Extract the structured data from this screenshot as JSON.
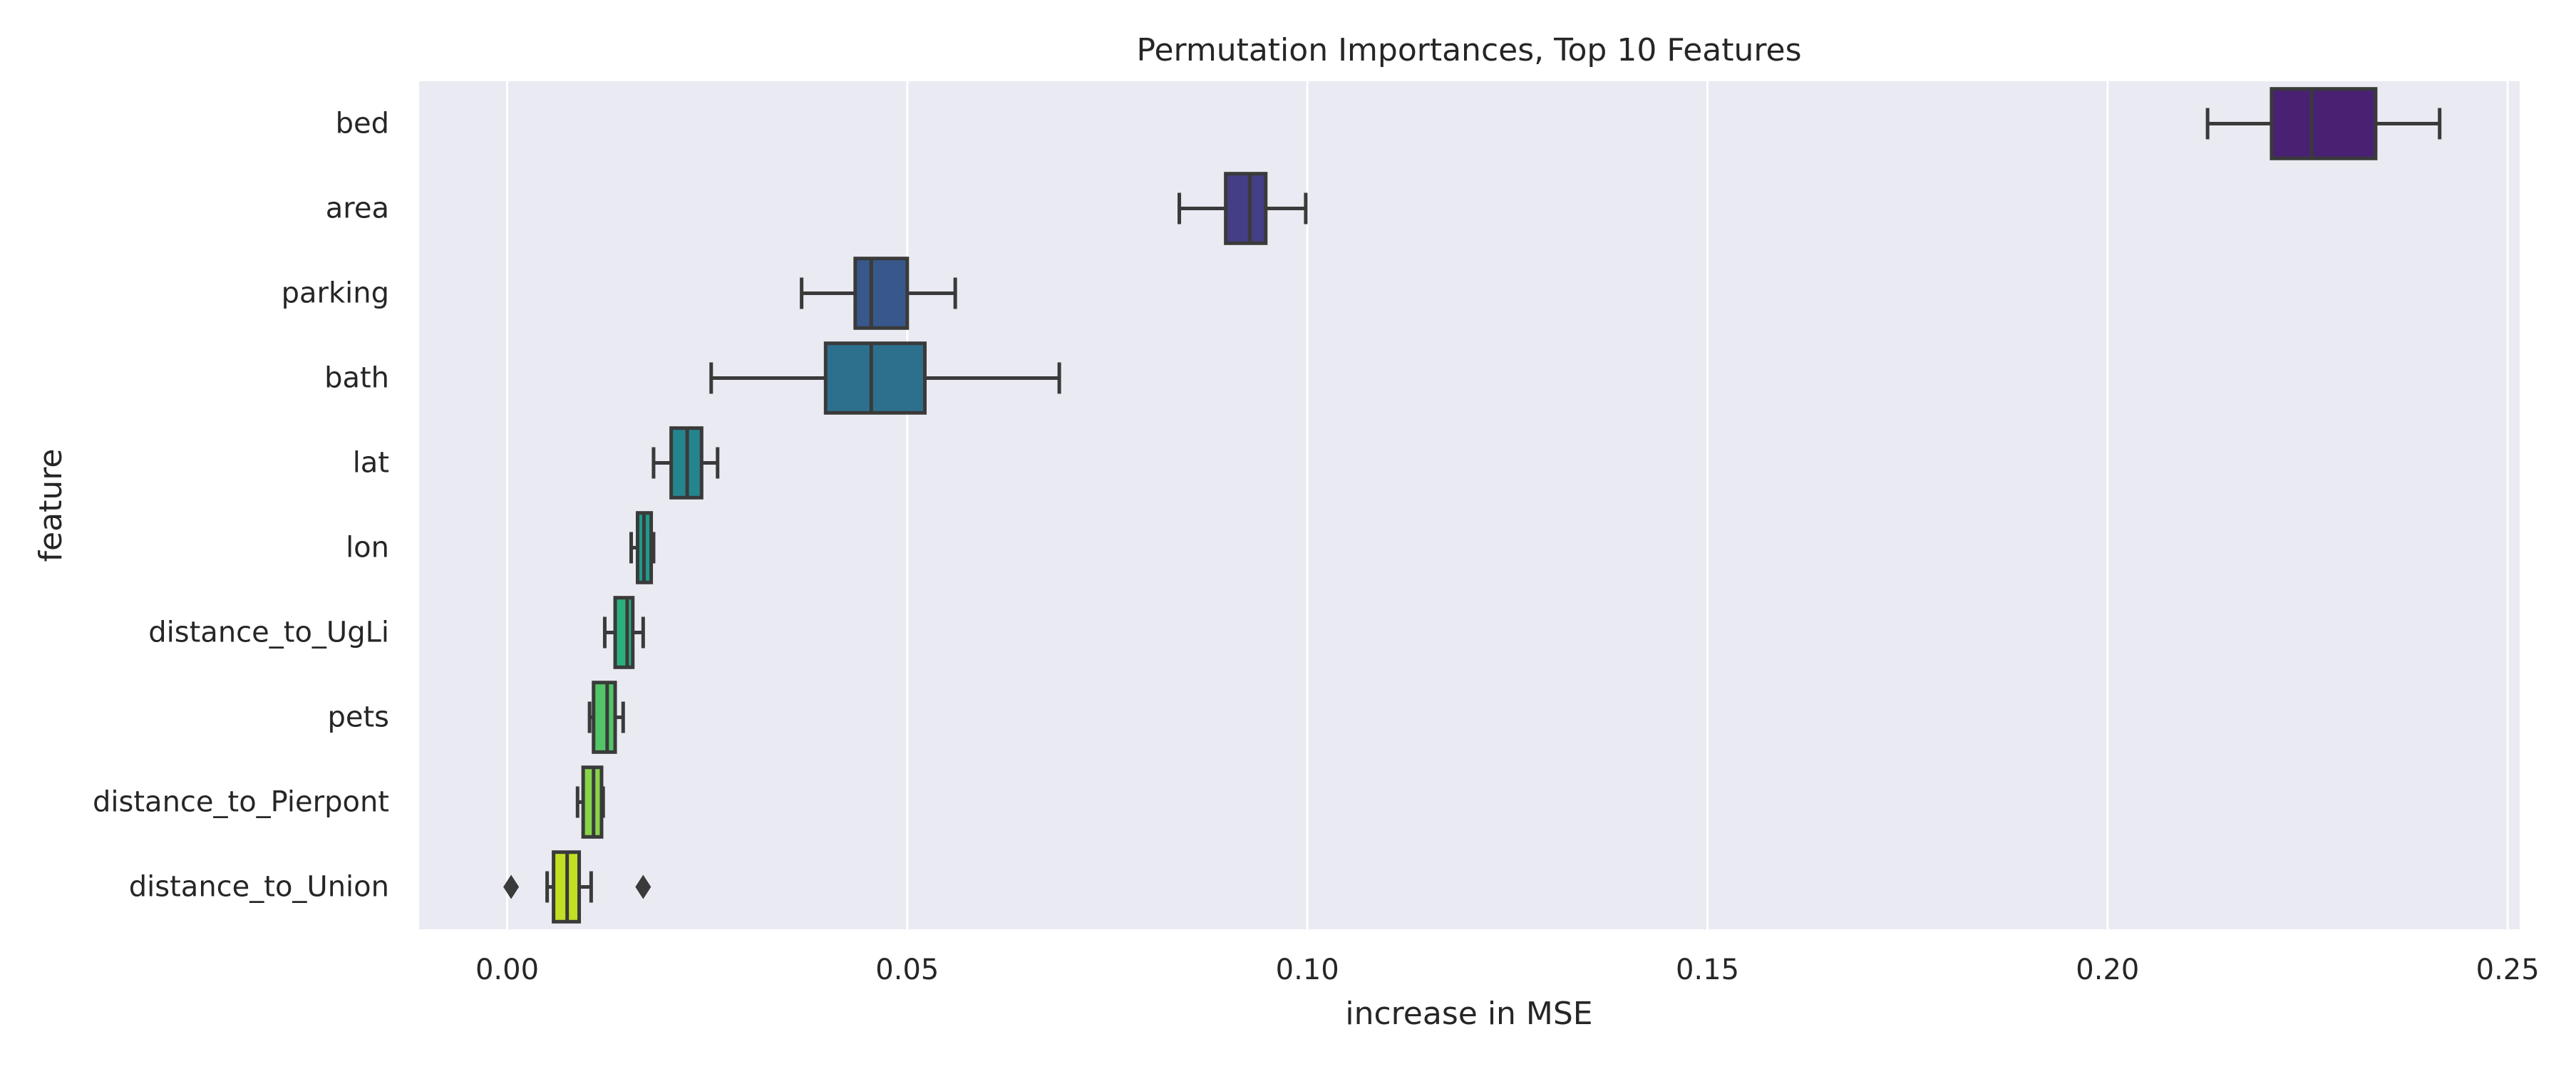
{
  "chart_data": {
    "type": "box",
    "orientation": "horizontal",
    "title": "Permutation Importances, Top 10 Features",
    "xlabel": "increase in MSE",
    "ylabel": "feature",
    "xlim": [
      -0.011,
      0.2515
    ],
    "xticks": [
      0.0,
      0.05,
      0.1,
      0.15,
      0.2,
      0.25
    ],
    "xtick_labels": [
      "0.00",
      "0.05",
      "0.10",
      "0.15",
      "0.20",
      "0.25"
    ],
    "grid": true,
    "palette": "viridis",
    "categories": [
      "bed",
      "area",
      "parking",
      "bath",
      "lat",
      "lon",
      "distance_to_UgLi",
      "pets",
      "distance_to_Pierpont",
      "distance_to_Union"
    ],
    "boxes": [
      {
        "label": "bed",
        "whisker_low": 0.2125,
        "q1": 0.2205,
        "median": 0.2255,
        "q3": 0.2335,
        "whisker_high": 0.2415,
        "outliers": [],
        "color": "#482173"
      },
      {
        "label": "area",
        "whisker_low": 0.084,
        "q1": 0.0898,
        "median": 0.0928,
        "q3": 0.0948,
        "whisker_high": 0.0998,
        "outliers": [],
        "color": "#433e85"
      },
      {
        "label": "parking",
        "whisker_low": 0.0368,
        "q1": 0.0435,
        "median": 0.0455,
        "q3": 0.05,
        "whisker_high": 0.056,
        "outliers": [],
        "color": "#38588c"
      },
      {
        "label": "bath",
        "whisker_low": 0.0255,
        "q1": 0.0398,
        "median": 0.0455,
        "q3": 0.0522,
        "whisker_high": 0.069,
        "outliers": [],
        "color": "#2d708e"
      },
      {
        "label": "lat",
        "whisker_low": 0.0183,
        "q1": 0.0205,
        "median": 0.0225,
        "q3": 0.0243,
        "whisker_high": 0.0263,
        "outliers": [],
        "color": "#25858e"
      },
      {
        "label": "lon",
        "whisker_low": 0.0155,
        "q1": 0.0163,
        "median": 0.0171,
        "q3": 0.018,
        "whisker_high": 0.0183,
        "outliers": [],
        "color": "#1e9b8a"
      },
      {
        "label": "distance_to_UgLi",
        "whisker_low": 0.0122,
        "q1": 0.0135,
        "median": 0.015,
        "q3": 0.0157,
        "whisker_high": 0.017,
        "outliers": [],
        "color": "#2ab07f"
      },
      {
        "label": "pets",
        "whisker_low": 0.0103,
        "q1": 0.0108,
        "median": 0.0125,
        "q3": 0.0135,
        "whisker_high": 0.0145,
        "outliers": [],
        "color": "#52c569"
      },
      {
        "label": "distance_to_Pierpont",
        "whisker_low": 0.0088,
        "q1": 0.0095,
        "median": 0.0108,
        "q3": 0.0118,
        "whisker_high": 0.012,
        "outliers": [],
        "color": "#86d549"
      },
      {
        "label": "distance_to_Union",
        "whisker_low": 0.005,
        "q1": 0.0058,
        "median": 0.0075,
        "q3": 0.009,
        "whisker_high": 0.0105,
        "outliers": [
          0.0005,
          0.017
        ],
        "color": "#c2df23"
      }
    ]
  }
}
